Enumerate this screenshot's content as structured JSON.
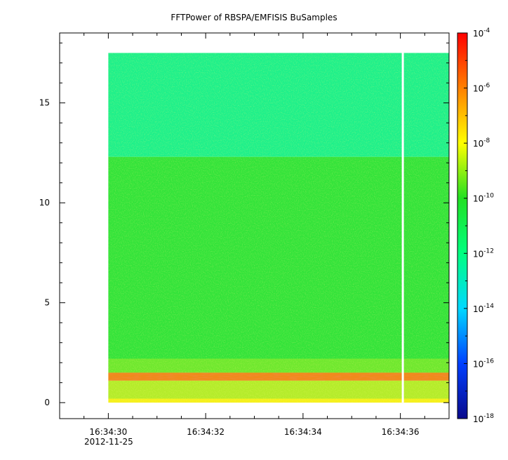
{
  "chart_data": {
    "type": "heatmap",
    "title": "FFTPower of RBSPA/EMFISIS  BuSamples",
    "xlabel": "",
    "ylabel": "",
    "x_axis": {
      "range": [
        "16:34:29.00",
        "16:34:37.00"
      ],
      "ticks": [
        "16:34:30",
        "16:34:32",
        "16:34:34",
        "16:34:36"
      ],
      "date_label": "2012-11-25"
    },
    "y_axis": {
      "range": [
        -0.8,
        18.5
      ],
      "ticks": [
        0,
        5,
        10,
        15
      ]
    },
    "colorbar": {
      "scale": "log",
      "range": [
        1e-18,
        0.0001
      ],
      "tick_exponents": [
        -4,
        -6,
        -8,
        -10,
        -12,
        -14,
        -16,
        -18
      ],
      "colors": [
        "#0a0a8c",
        "#0040ff",
        "#00d8ff",
        "#00ff80",
        "#22e022",
        "#ffff00",
        "#ff8000",
        "#ff0000"
      ]
    },
    "data_extent": {
      "t_start": "16:34:30.00",
      "t_end": "16:34:37.00",
      "f_min": 0,
      "f_max": 17.5,
      "gap_at": "16:34:36.05"
    },
    "bands": [
      {
        "f_range": [
          12.3,
          17.5
        ],
        "log_power": -11.5,
        "color": "#1ef08a"
      },
      {
        "f_range": [
          2.2,
          12.3
        ],
        "log_power": -10.0,
        "color": "#33e33a"
      },
      {
        "f_range": [
          1.5,
          2.2
        ],
        "log_power": -9.5,
        "color": "#6ee82e"
      },
      {
        "f_range": [
          1.1,
          1.5
        ],
        "log_power": -7.0,
        "color": "#f08a1a"
      },
      {
        "f_range": [
          0.2,
          1.1
        ],
        "log_power": -9.0,
        "color": "#b4ec2a"
      },
      {
        "f_range": [
          0.0,
          0.2
        ],
        "log_power": -8.0,
        "color": "#f5f01a"
      }
    ]
  }
}
